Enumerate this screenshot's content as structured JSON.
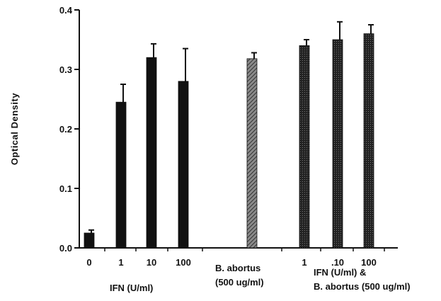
{
  "chart_data": {
    "type": "bar",
    "ylabel": "Optical Density",
    "ylim": [
      0,
      0.4
    ],
    "yticks": [
      "0.0",
      "0.1",
      "0.2",
      "0.3",
      "0.4"
    ],
    "bars": [
      {
        "category": "0",
        "value": 0.025,
        "error": 0.005,
        "fill": "solid"
      },
      {
        "category": "1",
        "value": 0.245,
        "error": 0.03,
        "fill": "solid"
      },
      {
        "category": "10",
        "value": 0.32,
        "error": 0.023,
        "fill": "solid"
      },
      {
        "category": "100",
        "value": 0.28,
        "error": 0.055,
        "fill": "solid"
      },
      {
        "category": "",
        "value": 0.318,
        "error": 0.01,
        "fill": "hatched"
      },
      {
        "category": "1",
        "value": 0.34,
        "error": 0.01,
        "fill": "dotted"
      },
      {
        "category": ".10",
        "value": 0.35,
        "error": 0.03,
        "fill": "dotted"
      },
      {
        "category": "100",
        "value": 0.36,
        "error": 0.015,
        "fill": "dotted"
      }
    ],
    "group_labels": [
      {
        "lines": [
          "IFN (U/ml)"
        ]
      },
      {
        "lines": [
          "B. abortus",
          "(500 ug/ml)"
        ]
      },
      {
        "lines": [
          "IFN (U/ml) &",
          "B. abortus (500 ug/ml)"
        ]
      }
    ],
    "colors": {
      "solid": "#111111",
      "hatched": "#555555",
      "dotted": "#333333"
    }
  }
}
